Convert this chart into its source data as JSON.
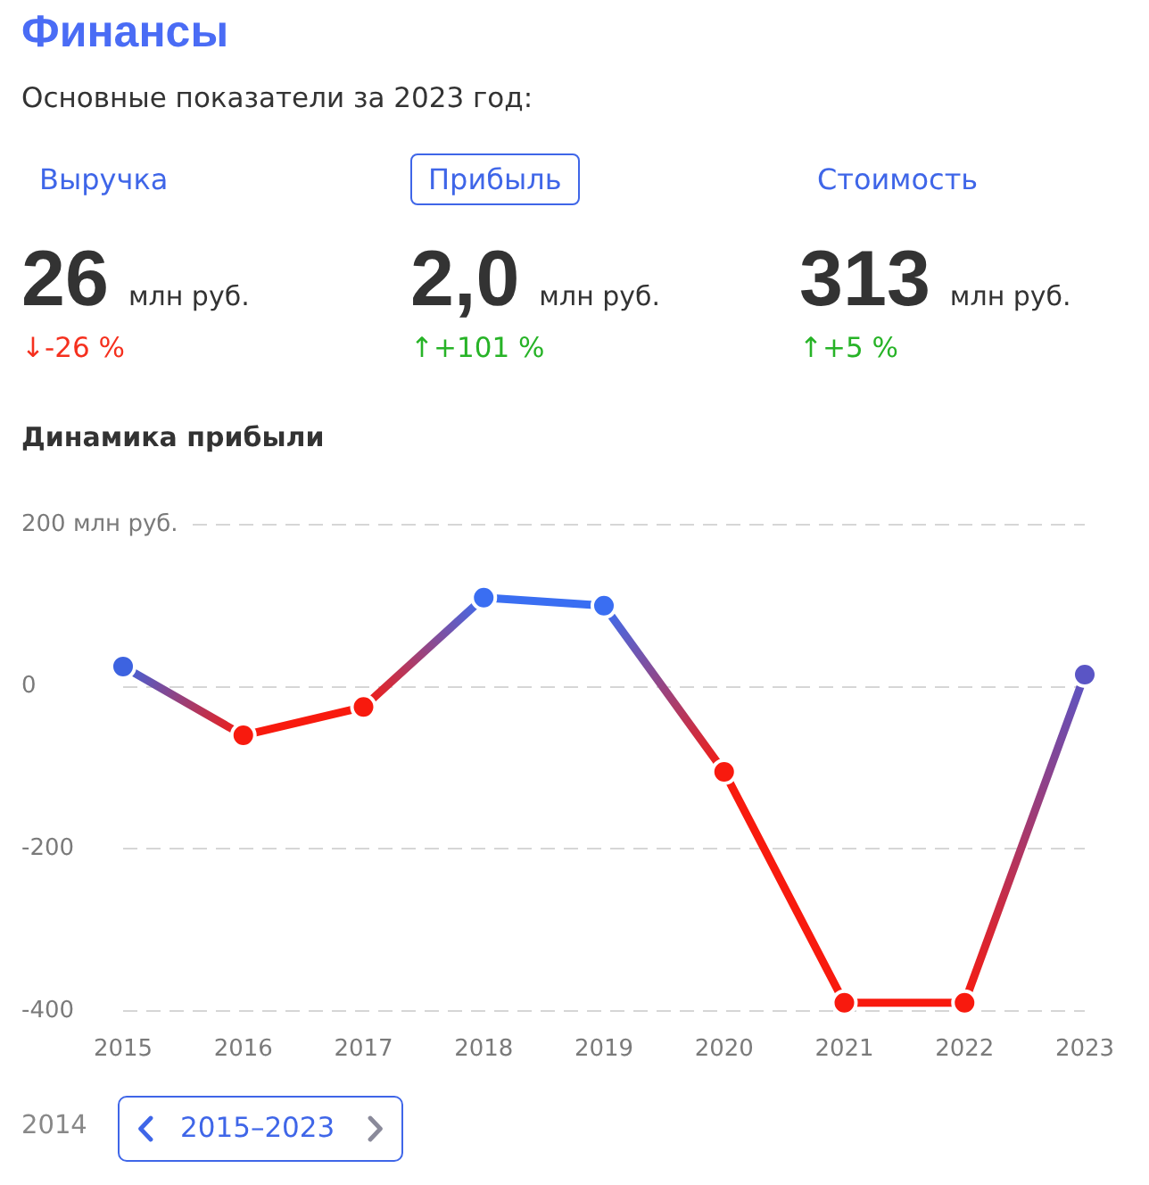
{
  "chart_data": [
    {
      "type": "other",
      "title": "Финансы",
      "subtitle": "Основные показатели за 2023 год:",
      "categories": [
        "Выручка",
        "Прибыль",
        "Стоимость"
      ],
      "annotations": [
        "26",
        "млн руб.",
        "↓-26 %",
        "2,0",
        "млн руб.",
        "↑+101 %",
        "313",
        "млн руб.",
        "↑+5 %"
      ],
      "colors": [
        "#f5301e",
        "#27b327",
        "#27b327"
      ]
    },
    {
      "type": "line",
      "title": "Динамика прибыли",
      "categories": [
        "2015",
        "2016",
        "2017",
        "2018",
        "2019",
        "2020",
        "2021",
        "2022",
        "2023"
      ],
      "series": [
        {
          "values": [
            25,
            -60,
            -25,
            110,
            100,
            -105,
            -390,
            -390,
            15
          ],
          "colors": [
            "#3d63e0",
            "#f81a0e",
            "#f81a0e",
            "#3a6ef2",
            "#3a6ef2",
            "#f81a0e",
            "#f81a0e",
            "#f81a0e",
            "#5a55c5"
          ]
        }
      ],
      "ylim": [
        -400,
        200
      ],
      "yticks": [
        -400,
        -200,
        0,
        {
          "value": 200,
          "label": "200 млн руб."
        }
      ],
      "grid": "y",
      "legend": false,
      "marker": "circle",
      "line_style": "solid",
      "annotations": [
        "2014",
        "2015–2023"
      ]
    }
  ]
}
